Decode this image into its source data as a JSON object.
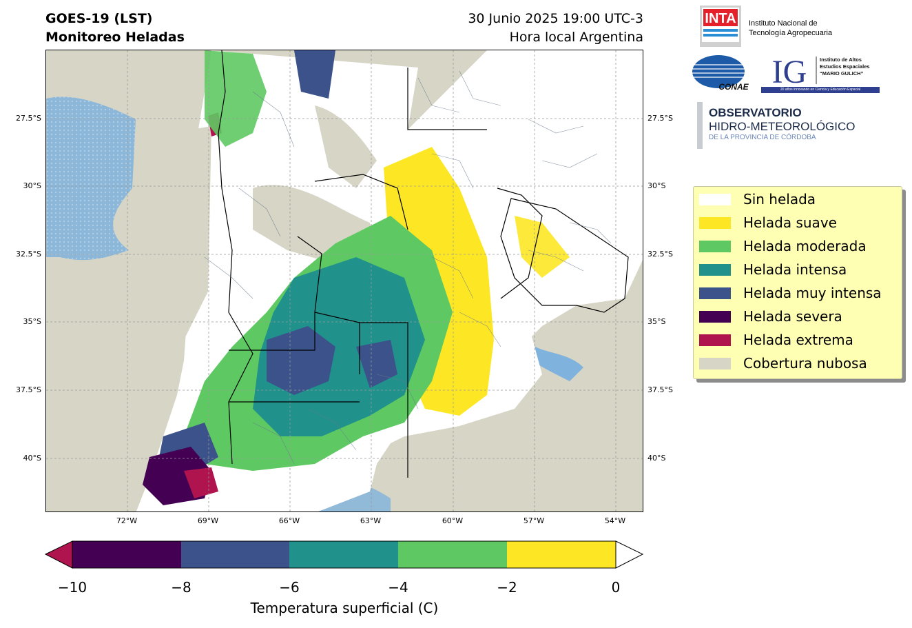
{
  "header": {
    "title_line1": "GOES-19 (LST)",
    "title_line2": "Monitoreo Heladas",
    "date_line1": "30 Junio 2025 19:00 UTC-3",
    "date_line2": "Hora local Argentina"
  },
  "map": {
    "lat_labels": [
      "27.5°S",
      "30°S",
      "32.5°S",
      "35°S",
      "37.5°S",
      "40°S"
    ],
    "lon_labels": [
      "72°W",
      "69°W",
      "66°W",
      "63°W",
      "60°W",
      "57°W",
      "54°W"
    ],
    "colors": {
      "cloud": "#d6d5c6",
      "water": "#7fb2dc"
    }
  },
  "legend": {
    "items": [
      {
        "label": "Sin helada",
        "color": "#ffffff"
      },
      {
        "label": "Helada suave",
        "color": "#fde725"
      },
      {
        "label": "Helada moderada",
        "color": "#5ec962"
      },
      {
        "label": "Helada intensa",
        "color": "#21918c"
      },
      {
        "label": "Helada muy intensa",
        "color": "#3b528b"
      },
      {
        "label": "Helada severa",
        "color": "#440154"
      },
      {
        "label": "Helada extrema",
        "color": "#b0144e"
      },
      {
        "label": "Cobertura nubosa",
        "color": "#d6d5c6"
      }
    ]
  },
  "colorbar": {
    "ticks": [
      "−10",
      "−8",
      "−6",
      "−4",
      "−2",
      "0"
    ],
    "label": "Temperatura superficial (C)"
  },
  "logos": {
    "inta_mark": "INTA",
    "inta_line1": "Instituto Nacional de",
    "inta_line2": "Tecnología Agropecuaria",
    "conae_mark": "CONAE",
    "ig_mark": "IG",
    "ig_line1": "Instituto de Altos",
    "ig_line2": "Estudios Espaciales",
    "ig_line3": "“MARIO GULICH”",
    "ig_banner": "20 años innovando en Ciencia y Educación Espacial",
    "obs_line1": "OBSERVATORIO",
    "obs_line2": "HIDRO-METEOROLÓGICO",
    "obs_line3": "DE LA PROVINCIA DE CÓRDOBA"
  }
}
